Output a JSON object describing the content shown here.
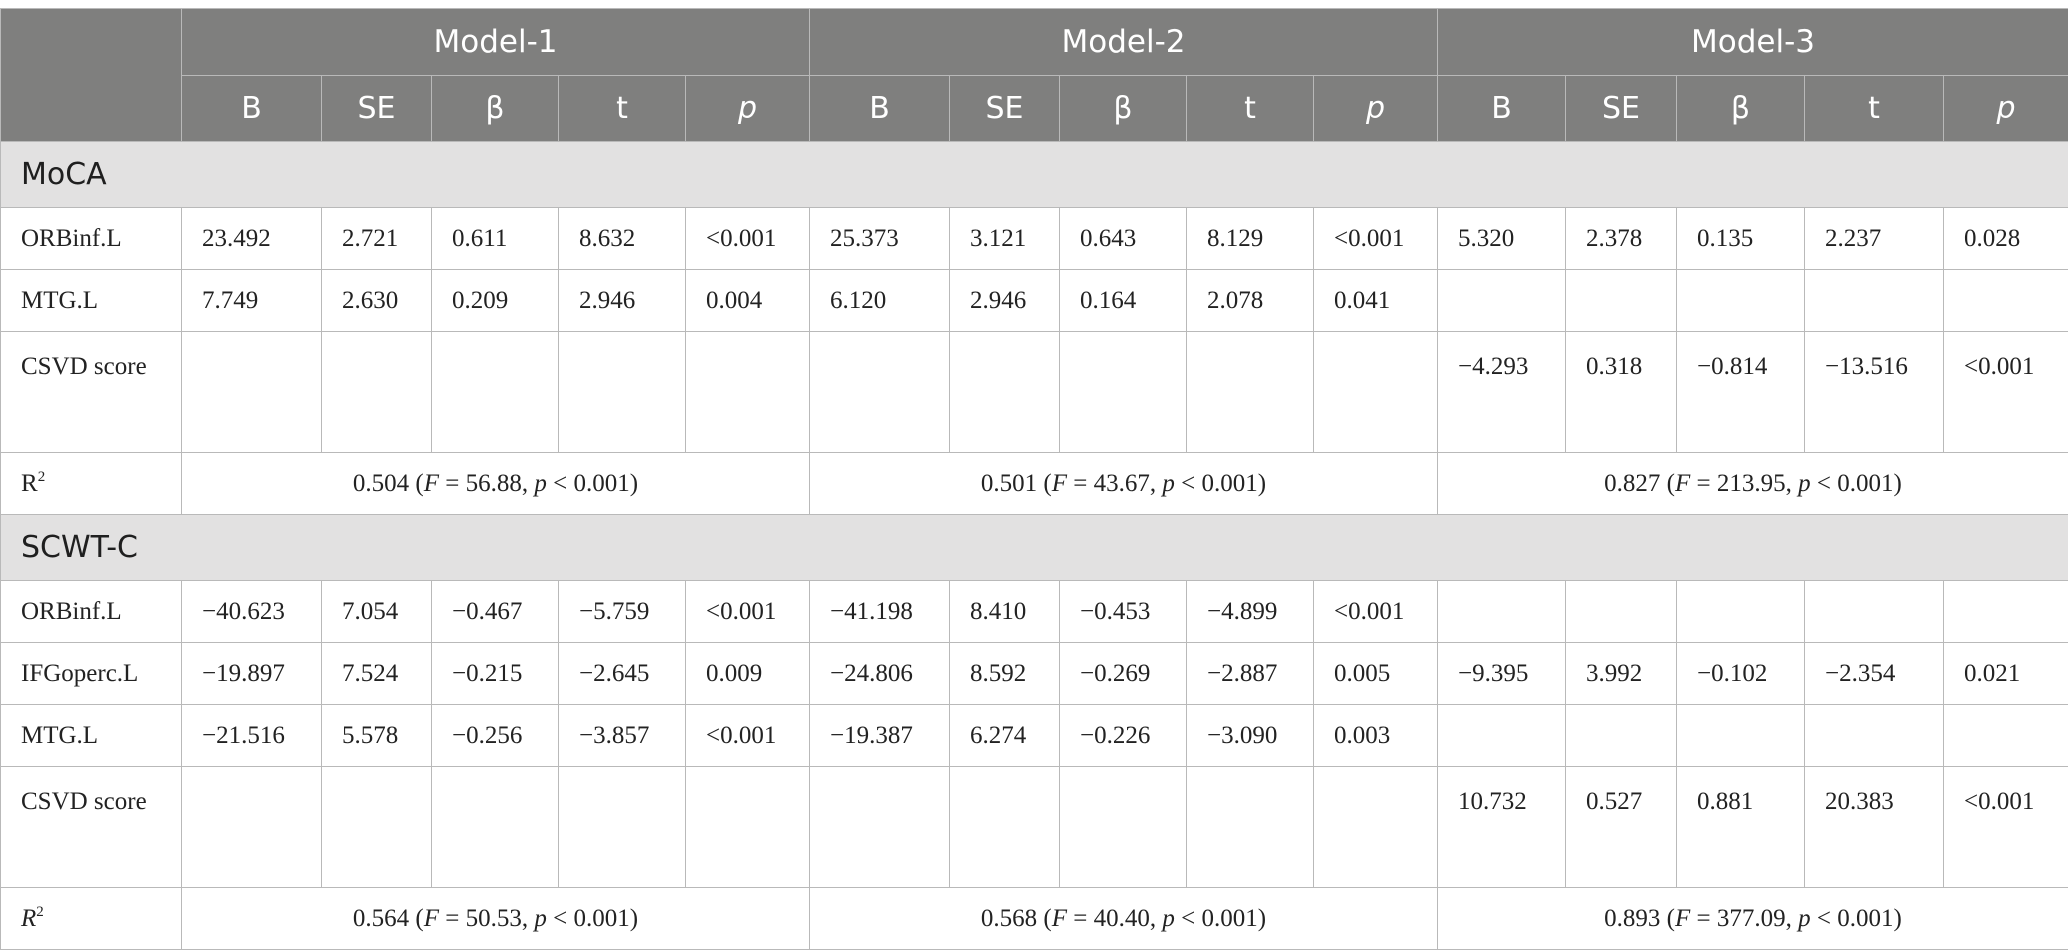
{
  "header": {
    "models": [
      "Model-1",
      "Model-2",
      "Model-3"
    ],
    "stats": [
      "B",
      "SE",
      "β",
      "t",
      "p"
    ]
  },
  "sections": [
    {
      "title": "MoCA",
      "rows": [
        {
          "label": "ORBinf.L",
          "m1": [
            "23.492",
            "2.721",
            "0.611",
            "8.632",
            "<0.001"
          ],
          "m2": [
            "25.373",
            "3.121",
            "0.643",
            "8.129",
            "<0.001"
          ],
          "m3": [
            "5.320",
            "2.378",
            "0.135",
            "2.237",
            "0.028"
          ]
        },
        {
          "label": "MTG.L",
          "m1": [
            "7.749",
            "2.630",
            "0.209",
            "2.946",
            "0.004"
          ],
          "m2": [
            "6.120",
            "2.946",
            "0.164",
            "2.078",
            "0.041"
          ],
          "m3": [
            "",
            "",
            "",
            "",
            ""
          ]
        },
        {
          "label": "CSVD score",
          "m1": [
            "",
            "",
            "",
            "",
            ""
          ],
          "m2": [
            "",
            "",
            "",
            "",
            ""
          ],
          "m3": [
            "−4.293",
            "0.318",
            "−0.814",
            "−13.516",
            "<0.001"
          ]
        }
      ],
      "r2": {
        "label": "R",
        "m1": {
          "r2": "0.504",
          "f": "56.88",
          "p": "0.001"
        },
        "m2": {
          "r2": "0.501",
          "f": "43.67",
          "p": "0.001"
        },
        "m3": {
          "r2": "0.827",
          "f": "213.95",
          "p": "0.001"
        }
      }
    },
    {
      "title": "SCWT-C",
      "rows": [
        {
          "label": "ORBinf.L",
          "m1": [
            "−40.623",
            "7.054",
            "−0.467",
            "−5.759",
            "<0.001"
          ],
          "m2": [
            "−41.198",
            "8.410",
            "−0.453",
            "−4.899",
            "<0.001"
          ],
          "m3": [
            "",
            "",
            "",
            "",
            ""
          ]
        },
        {
          "label": "IFGoperc.L",
          "m1": [
            "−19.897",
            "7.524",
            "−0.215",
            "−2.645",
            "0.009"
          ],
          "m2": [
            "−24.806",
            "8.592",
            "−0.269",
            "−2.887",
            "0.005"
          ],
          "m3": [
            "−9.395",
            "3.992",
            "−0.102",
            "−2.354",
            "0.021"
          ]
        },
        {
          "label": "MTG.L",
          "m1": [
            "−21.516",
            "5.578",
            "−0.256",
            "−3.857",
            "<0.001"
          ],
          "m2": [
            "−19.387",
            "6.274",
            "−0.226",
            "−3.090",
            "0.003"
          ],
          "m3": [
            "",
            "",
            "",
            "",
            ""
          ]
        },
        {
          "label": "CSVD score",
          "m1": [
            "",
            "",
            "",
            "",
            ""
          ],
          "m2": [
            "",
            "",
            "",
            "",
            ""
          ],
          "m3": [
            "10.732",
            "0.527",
            "0.881",
            "20.383",
            "<0.001"
          ]
        }
      ],
      "r2": {
        "label": "R",
        "m1": {
          "r2": "0.564",
          "f": "50.53",
          "p": "0.001"
        },
        "m2": {
          "r2": "0.568",
          "f": "40.40",
          "p": "0.001"
        },
        "m3": {
          "r2": "0.893",
          "f": "377.09",
          "p": "0.001"
        }
      }
    }
  ]
}
